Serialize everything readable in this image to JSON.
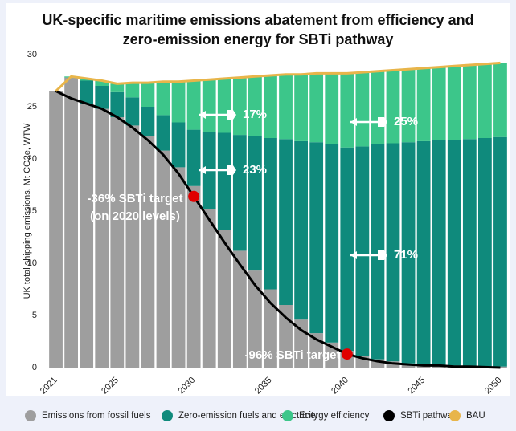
{
  "chart_data": {
    "type": "bar",
    "stacked": true,
    "title": [
      "UK-specific maritime emissions abatement from efficiency and",
      "zero-emission energy for SBTi pathway"
    ],
    "y_label": "UK total shipping emissions, Mt CO2e, WTW",
    "categories": [
      "2021",
      null,
      null,
      null,
      "2025",
      null,
      null,
      null,
      null,
      "2030",
      null,
      null,
      null,
      null,
      "2035",
      null,
      null,
      null,
      null,
      "2040",
      null,
      null,
      null,
      null,
      "2045",
      null,
      null,
      null,
      null,
      "2050"
    ],
    "ylim": [
      0,
      30
    ],
    "yticks": [
      0,
      5,
      10,
      15,
      20,
      25,
      30
    ],
    "series": [
      {
        "name": "Emissions from fossil fuels",
        "color": "#9e9e9e",
        "type": "bar",
        "values": [
          26.5,
          27.8,
          25.3,
          24.8,
          24.0,
          23.2,
          22.2,
          20.8,
          19.2,
          17.4,
          15.2,
          13.2,
          11.2,
          9.3,
          7.5,
          6.0,
          4.6,
          3.3,
          2.4,
          1.6,
          1.1,
          0.8,
          0.6,
          0.4,
          0.3,
          0.2,
          0.2,
          0.1,
          0.1,
          0.1
        ]
      },
      {
        "name": "Zero-emission fuels and electricity",
        "color": "#0f8a7c",
        "type": "bar",
        "values": [
          0,
          0,
          2.2,
          2.2,
          2.4,
          2.7,
          2.8,
          3.4,
          4.3,
          5.4,
          7.4,
          9.3,
          11.1,
          12.9,
          14.5,
          15.9,
          17.1,
          18.3,
          19.0,
          19.5,
          20.1,
          20.6,
          20.9,
          21.2,
          21.4,
          21.6,
          21.6,
          21.8,
          21.9,
          22.0
        ]
      },
      {
        "name": "Energy efficiency",
        "color": "#3cc68a",
        "type": "bar",
        "values": [
          0,
          0.1,
          0.2,
          0.5,
          0.8,
          1.4,
          2.3,
          3.2,
          3.9,
          4.7,
          5.0,
          5.2,
          5.5,
          5.7,
          6.0,
          6.2,
          6.4,
          6.6,
          6.8,
          7.1,
          7.1,
          7.0,
          7.0,
          7.0,
          7.0,
          7.0,
          7.1,
          7.1,
          7.1,
          7.1
        ]
      },
      {
        "name": "SBTi pathway",
        "color": "#000000",
        "type": "line",
        "values": [
          26.5,
          25.8,
          25.3,
          24.8,
          24.0,
          23.0,
          21.8,
          20.4,
          18.6,
          16.4,
          14.2,
          12.0,
          9.9,
          7.9,
          6.2,
          4.8,
          3.6,
          2.7,
          2.0,
          1.3,
          0.9,
          0.6,
          0.4,
          0.3,
          0.2,
          0.2,
          0.1,
          0.1,
          0.05,
          0.0
        ]
      },
      {
        "name": "BAU",
        "color": "#e8b54a",
        "type": "line",
        "values": [
          26.5,
          27.9,
          27.7,
          27.5,
          27.2,
          27.3,
          27.3,
          27.4,
          27.4,
          27.5,
          27.6,
          27.7,
          27.8,
          27.9,
          28.0,
          28.1,
          28.1,
          28.2,
          28.2,
          28.2,
          28.3,
          28.4,
          28.5,
          28.6,
          28.7,
          28.8,
          28.9,
          29.0,
          29.1,
          29.2
        ]
      }
    ],
    "target_color": "#e00000",
    "annotations": [
      "17%",
      "23%",
      "25%",
      "71%",
      "-36% SBTi target",
      "(on 2020 levels)",
      "-96% SBTi target"
    ]
  }
}
